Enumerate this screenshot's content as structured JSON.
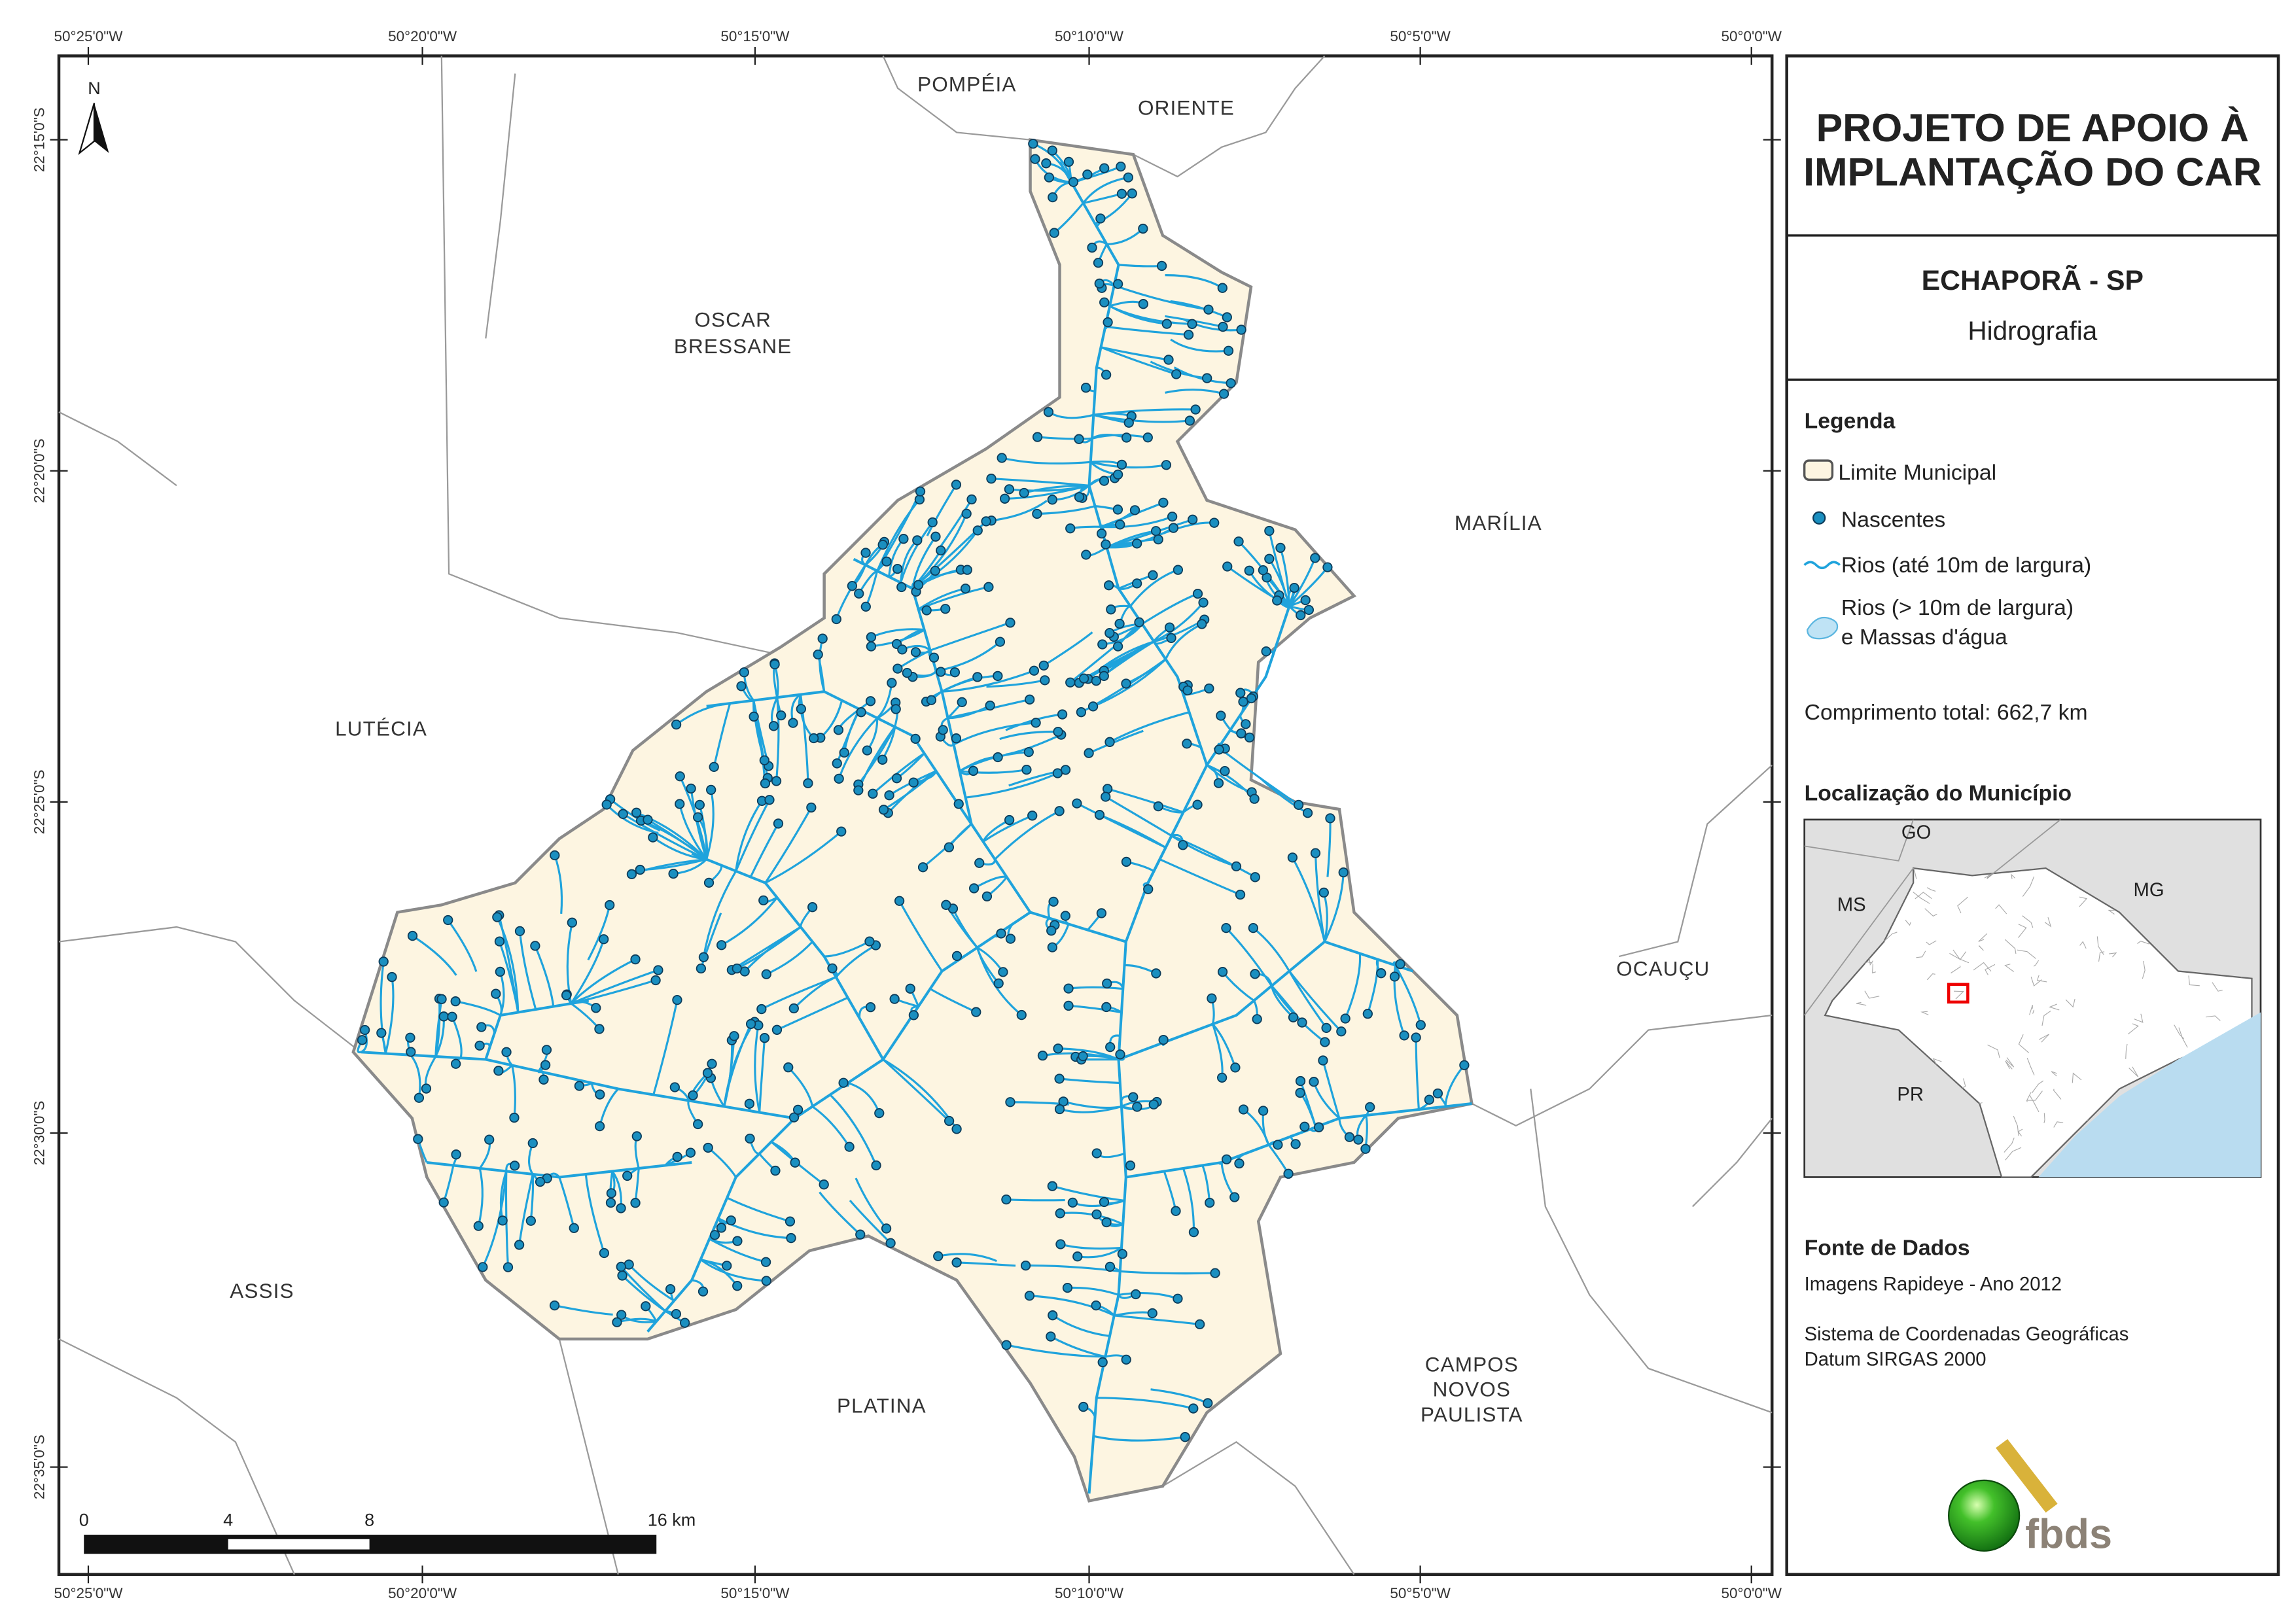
{
  "map": {
    "north_arrow": "N",
    "top_longitudes": [
      "50°25'0\"W",
      "50°20'0\"W",
      "50°15'0\"W",
      "50°10'0\"W",
      "50°5'0\"W",
      "50°0'0\"W"
    ],
    "bottom_longitudes": [
      "50°25'0\"W",
      "50°20'0\"W",
      "50°15'0\"W",
      "50°10'0\"W",
      "50°5'0\"W",
      "50°0'0\"W"
    ],
    "left_latitudes": [
      "22°15'0\"S",
      "22°20'0\"S",
      "22°25'0\"S",
      "22°30'0\"S",
      "22°35'0\"S"
    ],
    "places": {
      "pompeia": "POMPÉIA",
      "oriente": "ORIENTE",
      "oscar_bressane": [
        "OSCAR",
        "BRESSANE"
      ],
      "marilia": "MARÍLIA",
      "lutecia": "LUTÉCIA",
      "ocaucu": "OCAUÇU",
      "assis": "ASSIS",
      "platina": "PLATINA",
      "campos_novos": [
        "CAMPOS",
        "NOVOS",
        "PAULISTA"
      ]
    },
    "scale_bar": [
      "0",
      "4",
      "8",
      "16 km"
    ]
  },
  "panel": {
    "title": [
      "PROJETO DE APOIO À",
      "IMPLANTAÇÃO DO CAR"
    ],
    "municipality": "ECHAPORÃ - SP",
    "theme": "Hidrografia",
    "legend": {
      "title": "Legenda",
      "items": [
        "Limite Municipal",
        "Nascentes",
        "Rios (até 10m de largura)",
        [
          "Rios (> 10m de largura)",
          "e Massas d'água"
        ]
      ]
    },
    "total_length": "Comprimento total: 662,7 km",
    "location": {
      "title": "Localização do Município",
      "states": [
        "GO",
        "MS",
        "MG",
        "PR"
      ]
    },
    "sources": {
      "title": "Fonte de Dados",
      "lines": [
        "Imagens Rapideye - Ano 2012",
        "Sistema de Coordenadas Geográficas",
        "Datum SIRGAS 2000"
      ]
    },
    "logo": "fbds"
  }
}
